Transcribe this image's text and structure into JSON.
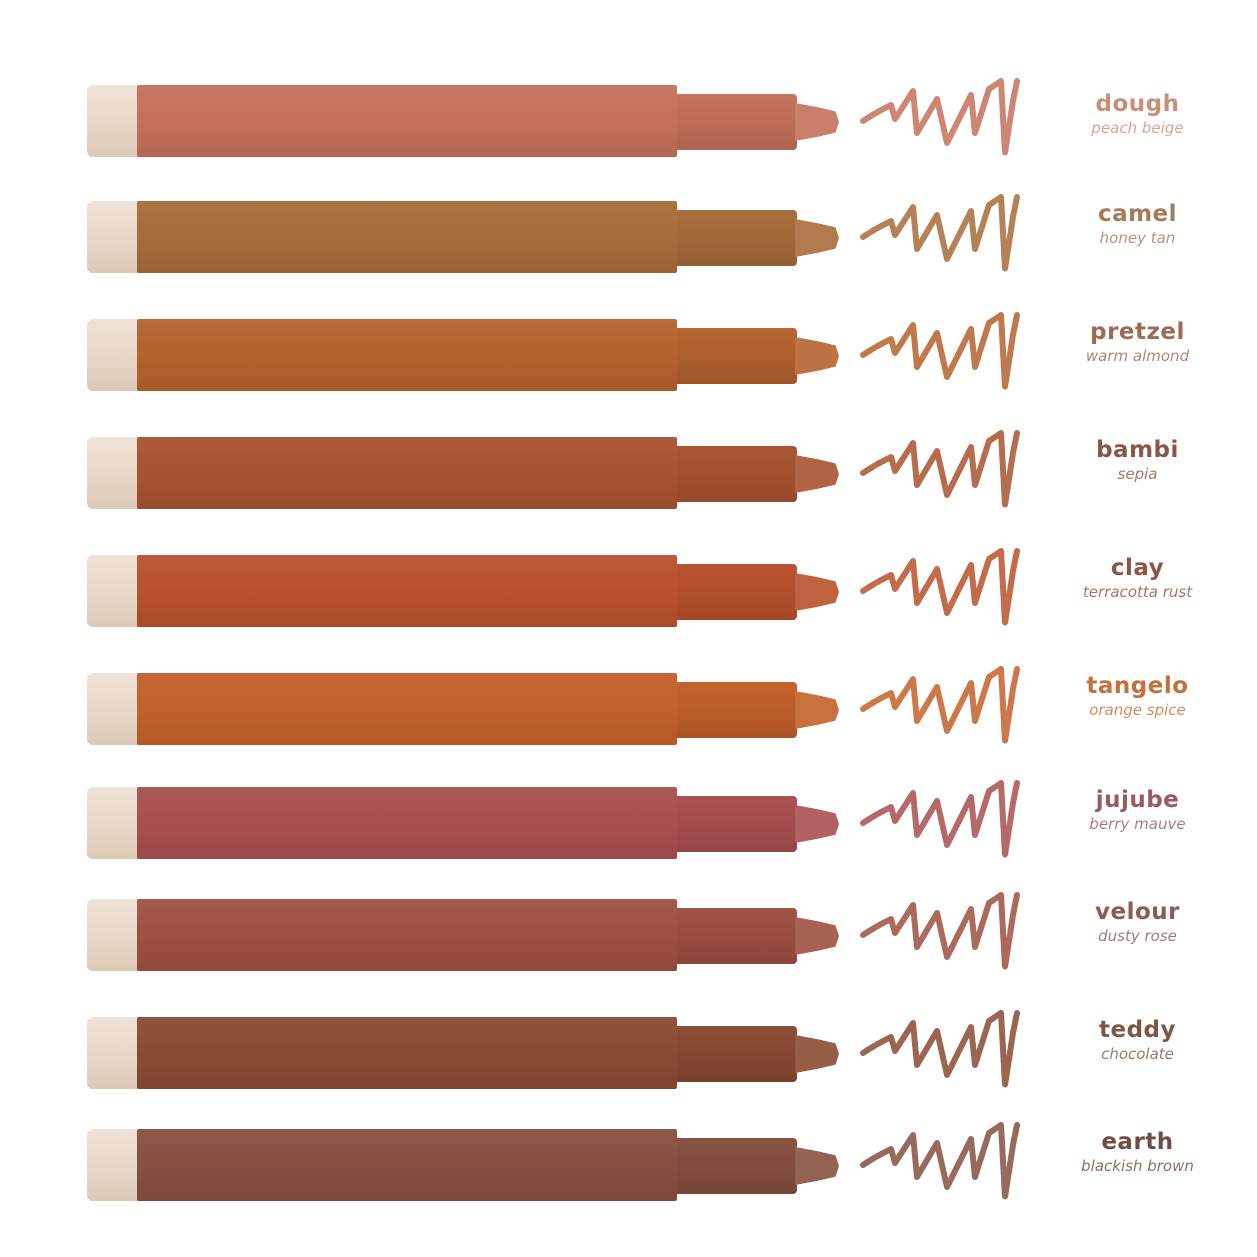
{
  "shades": [
    {
      "name": "dough",
      "description": "peach beige",
      "color": "#c4715a",
      "label_color": "#c98e78"
    },
    {
      "name": "camel",
      "description": "honey tan",
      "color": "#a86c3a",
      "label_color": "#a47a5c"
    },
    {
      "name": "pretzel",
      "description": "warm almond",
      "color": "#b4622e",
      "label_color": "#9c6a55"
    },
    {
      "name": "bambi",
      "description": "sepia",
      "color": "#a8532f",
      "label_color": "#8c5548"
    },
    {
      "name": "clay",
      "description": "terracotta rust",
      "color": "#b9512c",
      "label_color": "#8c5548"
    },
    {
      "name": "tangelo",
      "description": "orange spice",
      "color": "#c3602a",
      "label_color": "#c4703c"
    },
    {
      "name": "jujube",
      "description": "berry mauve",
      "color": "#a84f4f",
      "label_color": "#9c5a60"
    },
    {
      "name": "velour",
      "description": "dusty rose",
      "color": "#9e5041",
      "label_color": "#8e5a55"
    },
    {
      "name": "teddy",
      "description": "chocolate",
      "color": "#8a4b33",
      "label_color": "#7e5648"
    },
    {
      "name": "earth",
      "description": "blackish brown",
      "color": "#86503f",
      "label_color": "#6e4d44"
    }
  ]
}
